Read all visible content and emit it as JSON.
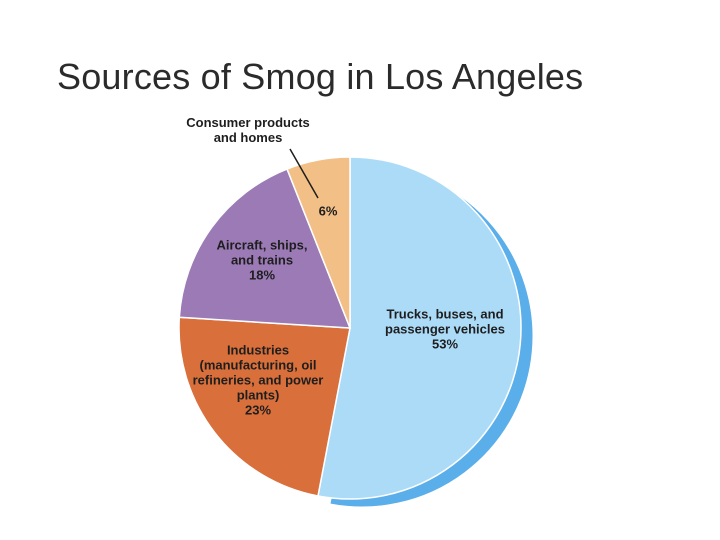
{
  "chart_data": {
    "type": "pie",
    "title": "Sources of Smog in Los Angeles",
    "categories": [
      "Trucks, buses, and passenger vehicles",
      "Industries (manufacturing, oil refineries, and power plants)",
      "Aircraft, ships, and trains",
      "Consumer products and homes"
    ],
    "values": [
      53,
      23,
      18,
      6
    ],
    "value_labels": [
      "53%",
      "23%",
      "18%",
      "6%"
    ],
    "colors": [
      "#acdbf8",
      "#d96f3b",
      "#9b7ab6",
      "#f2bf86"
    ]
  }
}
